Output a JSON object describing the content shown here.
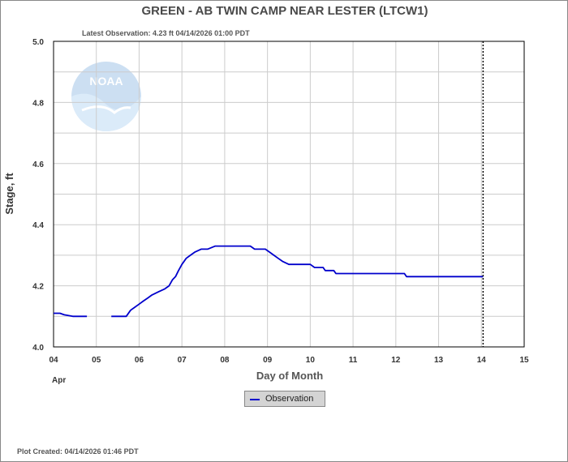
{
  "header": {
    "title": "GREEN - AB TWIN CAMP NEAR LESTER  (LTCW1)",
    "latest_observation": "Latest Observation: 4.23 ft 04/14/2026 01:00 PDT"
  },
  "footer": {
    "plot_created": "Plot Created: 04/14/2026 01:46 PDT"
  },
  "logo": {
    "text": "NOAA"
  },
  "legend": {
    "label": "Observation"
  },
  "colors": {
    "series": "#0000cc",
    "grid": "#cccccc",
    "axis": "#000000"
  },
  "chart_data": {
    "type": "line",
    "xlabel": "Day of Month",
    "ylabel": "Stage, ft",
    "month_label": "Apr",
    "xlim": [
      4,
      15
    ],
    "ylim": [
      4.0,
      5.0
    ],
    "x_ticks": [
      "04",
      "05",
      "06",
      "07",
      "08",
      "09",
      "10",
      "11",
      "12",
      "13",
      "14",
      "15"
    ],
    "y_ticks": [
      "4.0",
      "4.2",
      "4.4",
      "4.6",
      "4.8",
      "5.0"
    ],
    "grid": true,
    "latest_marker_x": 14.04,
    "series": [
      {
        "name": "Observation",
        "segments": [
          [
            [
              4.0,
              4.11
            ],
            [
              4.15,
              4.11
            ],
            [
              4.25,
              4.105
            ],
            [
              4.45,
              4.1
            ],
            [
              4.78,
              4.1
            ]
          ],
          [
            [
              5.35,
              4.1
            ],
            [
              5.7,
              4.1
            ],
            [
              5.8,
              4.12
            ],
            [
              5.9,
              4.13
            ],
            [
              6.0,
              4.14
            ],
            [
              6.1,
              4.15
            ],
            [
              6.2,
              4.16
            ],
            [
              6.3,
              4.17
            ],
            [
              6.45,
              4.18
            ],
            [
              6.6,
              4.19
            ],
            [
              6.7,
              4.2
            ],
            [
              6.78,
              4.22
            ],
            [
              6.85,
              4.23
            ],
            [
              6.92,
              4.25
            ],
            [
              7.0,
              4.27
            ],
            [
              7.1,
              4.29
            ],
            [
              7.2,
              4.3
            ],
            [
              7.3,
              4.31
            ],
            [
              7.45,
              4.32
            ],
            [
              7.6,
              4.32
            ],
            [
              7.78,
              4.33
            ],
            [
              8.0,
              4.33
            ],
            [
              8.3,
              4.33
            ],
            [
              8.6,
              4.33
            ],
            [
              8.7,
              4.32
            ],
            [
              8.95,
              4.32
            ],
            [
              9.05,
              4.31
            ],
            [
              9.15,
              4.3
            ],
            [
              9.25,
              4.29
            ],
            [
              9.35,
              4.28
            ],
            [
              9.5,
              4.27
            ],
            [
              9.7,
              4.27
            ],
            [
              10.0,
              4.27
            ],
            [
              10.1,
              4.26
            ],
            [
              10.3,
              4.26
            ],
            [
              10.35,
              4.25
            ],
            [
              10.55,
              4.25
            ],
            [
              10.6,
              4.24
            ],
            [
              11.0,
              4.24
            ],
            [
              11.5,
              4.24
            ],
            [
              12.0,
              4.24
            ],
            [
              12.2,
              4.24
            ],
            [
              12.25,
              4.23
            ],
            [
              12.5,
              4.23
            ],
            [
              13.0,
              4.23
            ],
            [
              13.5,
              4.23
            ],
            [
              14.04,
              4.23
            ]
          ]
        ]
      }
    ]
  }
}
